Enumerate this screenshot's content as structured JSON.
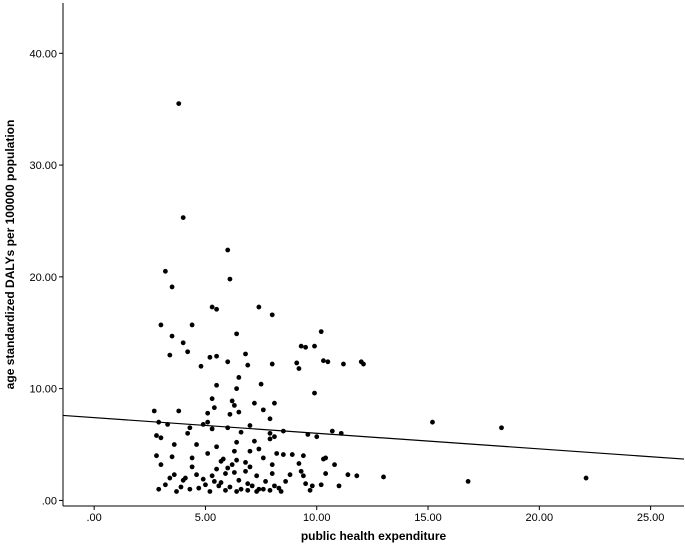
{
  "chart_data": {
    "type": "scatter",
    "title": "",
    "xlabel": "public health expenditure",
    "ylabel": "age standardized DALYs per 100000 population",
    "xlim": [
      -1.4,
      26.5
    ],
    "ylim": [
      -0.5,
      44.5
    ],
    "x_ticks": [
      0,
      5,
      10,
      15,
      20,
      25
    ],
    "x_tick_labels": [
      ".00",
      "5.00",
      "10.00",
      "15.00",
      "20.00",
      "25.00"
    ],
    "y_ticks": [
      0,
      10,
      20,
      30,
      40
    ],
    "y_tick_labels": [
      ".00",
      "10.00",
      "20.00",
      "30.00",
      "40.00"
    ],
    "grid": false,
    "legend": "none",
    "marker_color": "#000000",
    "fit_line": {
      "x": [
        -1.4,
        26.5
      ],
      "y": [
        7.6,
        3.7
      ]
    },
    "points": [
      [
        3.8,
        35.5
      ],
      [
        4.0,
        25.3
      ],
      [
        6.0,
        22.4
      ],
      [
        3.2,
        20.5
      ],
      [
        6.1,
        19.8
      ],
      [
        3.5,
        19.1
      ],
      [
        5.3,
        17.3
      ],
      [
        7.4,
        17.3
      ],
      [
        5.5,
        17.1
      ],
      [
        8.0,
        16.6
      ],
      [
        3.0,
        15.7
      ],
      [
        4.4,
        15.7
      ],
      [
        10.2,
        15.1
      ],
      [
        6.4,
        14.9
      ],
      [
        3.5,
        14.7
      ],
      [
        4.0,
        14.1
      ],
      [
        9.3,
        13.8
      ],
      [
        9.5,
        13.7
      ],
      [
        9.9,
        13.8
      ],
      [
        3.4,
        13.0
      ],
      [
        4.2,
        13.3
      ],
      [
        6.8,
        13.1
      ],
      [
        5.2,
        12.8
      ],
      [
        5.5,
        12.9
      ],
      [
        10.3,
        12.5
      ],
      [
        10.5,
        12.4
      ],
      [
        12.0,
        12.4
      ],
      [
        12.1,
        12.2
      ],
      [
        6.0,
        12.4
      ],
      [
        6.9,
        12.1
      ],
      [
        8.0,
        12.2
      ],
      [
        9.1,
        12.3
      ],
      [
        9.2,
        11.8
      ],
      [
        11.2,
        12.2
      ],
      [
        4.8,
        12.0
      ],
      [
        6.5,
        11.0
      ],
      [
        5.5,
        10.3
      ],
      [
        7.5,
        10.4
      ],
      [
        6.4,
        10.0
      ],
      [
        9.9,
        9.6
      ],
      [
        5.3,
        9.1
      ],
      [
        6.2,
        8.9
      ],
      [
        7.2,
        8.7
      ],
      [
        8.1,
        8.7
      ],
      [
        5.4,
        8.3
      ],
      [
        6.3,
        8.5
      ],
      [
        7.6,
        8.1
      ],
      [
        6.5,
        7.9
      ],
      [
        3.8,
        8.0
      ],
      [
        2.7,
        8.0
      ],
      [
        5.1,
        7.8
      ],
      [
        6.1,
        7.7
      ],
      [
        7.9,
        7.3
      ],
      [
        5.1,
        7.0
      ],
      [
        4.9,
        6.8
      ],
      [
        4.3,
        6.5
      ],
      [
        7.0,
        6.7
      ],
      [
        2.9,
        7.0
      ],
      [
        3.3,
        6.8
      ],
      [
        6.0,
        6.5
      ],
      [
        5.3,
        6.4
      ],
      [
        6.6,
        6.1
      ],
      [
        2.8,
        5.8
      ],
      [
        3.0,
        5.6
      ],
      [
        7.9,
        6.0
      ],
      [
        8.5,
        6.2
      ],
      [
        10.7,
        6.2
      ],
      [
        11.1,
        6.0
      ],
      [
        15.2,
        7.0
      ],
      [
        18.3,
        6.5
      ],
      [
        4.2,
        6.0
      ],
      [
        6.4,
        5.2
      ],
      [
        7.2,
        5.3
      ],
      [
        7.9,
        5.5
      ],
      [
        8.1,
        5.7
      ],
      [
        9.6,
        5.9
      ],
      [
        10.0,
        5.7
      ],
      [
        3.6,
        5.0
      ],
      [
        4.6,
        5.0
      ],
      [
        5.5,
        4.8
      ],
      [
        6.3,
        4.4
      ],
      [
        7.0,
        4.4
      ],
      [
        8.2,
        4.2
      ],
      [
        5.1,
        4.2
      ],
      [
        7.6,
        3.8
      ],
      [
        8.5,
        4.1
      ],
      [
        9.4,
        4.0
      ],
      [
        3.5,
        3.9
      ],
      [
        2.8,
        4.0
      ],
      [
        4.4,
        3.8
      ],
      [
        5.8,
        3.7
      ],
      [
        6.8,
        3.4
      ],
      [
        3.0,
        3.2
      ],
      [
        6.2,
        3.2
      ],
      [
        8.0,
        3.2
      ],
      [
        9.2,
        3.3
      ],
      [
        7.0,
        3.0
      ],
      [
        6.0,
        2.9
      ],
      [
        5.5,
        2.8
      ],
      [
        10.3,
        3.7
      ],
      [
        10.4,
        3.8
      ],
      [
        10.8,
        3.2
      ],
      [
        3.6,
        2.3
      ],
      [
        4.1,
        2.0
      ],
      [
        4.6,
        2.3
      ],
      [
        5.3,
        2.2
      ],
      [
        5.9,
        2.4
      ],
      [
        6.3,
        2.5
      ],
      [
        6.8,
        2.6
      ],
      [
        7.3,
        2.2
      ],
      [
        8.0,
        2.4
      ],
      [
        8.8,
        2.3
      ],
      [
        9.4,
        2.2
      ],
      [
        10.4,
        2.4
      ],
      [
        11.4,
        2.3
      ],
      [
        11.8,
        2.2
      ],
      [
        13.0,
        2.1
      ],
      [
        16.8,
        1.7
      ],
      [
        22.1,
        2.0
      ],
      [
        3.4,
        2.0
      ],
      [
        4.0,
        1.8
      ],
      [
        4.9,
        1.9
      ],
      [
        5.4,
        1.7
      ],
      [
        6.5,
        1.8
      ],
      [
        7.7,
        1.7
      ],
      [
        8.6,
        1.7
      ],
      [
        3.9,
        1.2
      ],
      [
        4.7,
        1.1
      ],
      [
        5.6,
        1.3
      ],
      [
        6.1,
        1.2
      ],
      [
        6.6,
        1.0
      ],
      [
        7.1,
        1.3
      ],
      [
        7.6,
        1.0
      ],
      [
        8.1,
        1.3
      ],
      [
        9.8,
        1.3
      ],
      [
        10.2,
        1.4
      ],
      [
        11.0,
        1.3
      ],
      [
        2.9,
        1.0
      ],
      [
        3.7,
        0.8
      ],
      [
        4.3,
        1.0
      ],
      [
        5.2,
        0.8
      ],
      [
        5.9,
        0.9
      ],
      [
        6.4,
        0.8
      ],
      [
        6.9,
        0.9
      ],
      [
        7.3,
        0.8
      ],
      [
        7.9,
        0.9
      ],
      [
        8.4,
        0.8
      ],
      [
        9.7,
        0.9
      ],
      [
        3.2,
        1.4
      ],
      [
        5.0,
        1.4
      ],
      [
        6.9,
        1.5
      ],
      [
        5.7,
        1.6
      ],
      [
        8.3,
        1.1
      ],
      [
        7.4,
        1.0
      ],
      [
        9.5,
        1.5
      ],
      [
        4.4,
        3.0
      ],
      [
        5.7,
        3.5
      ],
      [
        6.4,
        3.6
      ],
      [
        7.4,
        4.6
      ],
      [
        8.9,
        4.1
      ],
      [
        9.3,
        2.6
      ]
    ]
  }
}
